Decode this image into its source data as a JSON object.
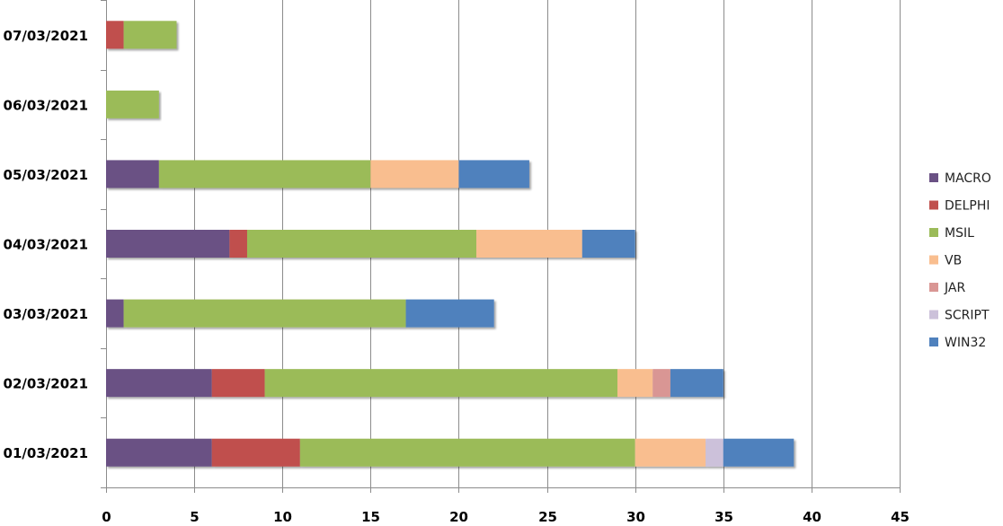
{
  "chart_data": {
    "type": "bar",
    "orientation": "horizontal",
    "stacked": true,
    "categories": [
      "01/03/2021",
      "02/03/2021",
      "03/03/2021",
      "04/03/2021",
      "05/03/2021",
      "06/03/2021",
      "07/03/2021"
    ],
    "series": [
      {
        "name": "MACRO",
        "color": "#6a5184",
        "values": [
          6,
          6,
          1,
          7,
          3,
          0,
          0
        ]
      },
      {
        "name": "DELPHI",
        "color": "#c0504d",
        "values": [
          5,
          3,
          0,
          1,
          0,
          0,
          1
        ]
      },
      {
        "name": "MSIL",
        "color": "#9bbb59",
        "values": [
          19,
          20,
          16,
          13,
          12,
          3,
          3
        ]
      },
      {
        "name": "VB",
        "color": "#f9be8f",
        "values": [
          4,
          2,
          0,
          6,
          5,
          0,
          0
        ]
      },
      {
        "name": "JAR",
        "color": "#d99694",
        "values": [
          0,
          1,
          0,
          0,
          0,
          0,
          0
        ]
      },
      {
        "name": "SCRIPT",
        "color": "#ccc1da",
        "values": [
          1,
          0,
          0,
          0,
          0,
          0,
          0
        ]
      },
      {
        "name": "WIN32",
        "color": "#4f81bd",
        "values": [
          4,
          3,
          5,
          3,
          4,
          0,
          0
        ]
      }
    ],
    "xlim": [
      0,
      45
    ],
    "x_ticks": [
      0,
      5,
      10,
      15,
      20,
      25,
      30,
      35,
      40,
      45
    ],
    "title": "",
    "xlabel": "",
    "ylabel": "",
    "grid": "vertical",
    "legend_position": "right"
  }
}
